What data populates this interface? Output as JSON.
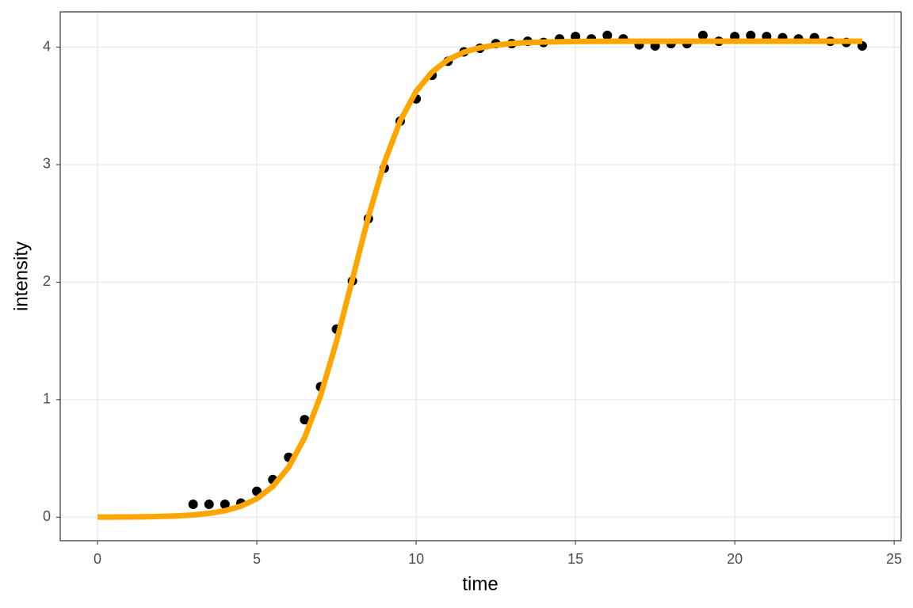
{
  "chart_data": {
    "type": "scatter",
    "x_label": "time",
    "y_label": "intensity",
    "xlim": [
      -1.17,
      25.22
    ],
    "ylim": [
      -0.2,
      4.3
    ],
    "xticks": [
      0,
      5,
      10,
      15,
      20,
      25
    ],
    "yticks": [
      0,
      1,
      2,
      3,
      4
    ],
    "grid": true,
    "series": [
      {
        "mark": "point",
        "color": "#000000",
        "x": [
          3,
          3.5,
          4,
          4.5,
          5,
          5.5,
          6,
          6.5,
          7,
          7.5,
          8,
          8.5,
          9,
          9.5,
          10,
          10.5,
          11,
          11.5,
          12,
          12.5,
          13,
          13.5,
          14,
          14.5,
          15,
          15.5,
          16,
          16.5,
          17,
          17.5,
          18,
          18.5,
          19,
          19.5,
          20,
          20.5,
          21,
          21.5,
          22,
          22.5,
          23,
          23.5,
          24
        ],
        "values": [
          0.11,
          0.11,
          0.11,
          0.12,
          0.22,
          0.32,
          0.51,
          0.83,
          1.11,
          1.6,
          2.01,
          2.54,
          2.97,
          3.37,
          3.56,
          3.76,
          3.88,
          3.96,
          3.99,
          4.03,
          4.03,
          4.05,
          4.04,
          4.07,
          4.09,
          4.07,
          4.1,
          4.07,
          4.02,
          4.01,
          4.03,
          4.03,
          4.1,
          4.05,
          4.09,
          4.1,
          4.09,
          4.08,
          4.07,
          4.08,
          4.05,
          4.04,
          4.01
        ]
      },
      {
        "mark": "line",
        "color": "#FFA500",
        "x": [
          0,
          0.5,
          1,
          1.5,
          2,
          2.5,
          3,
          3.5,
          4,
          4.5,
          5,
          5.5,
          6,
          6.5,
          7,
          7.5,
          8,
          8.5,
          9,
          9.5,
          10,
          10.5,
          11,
          11.5,
          12,
          12.5,
          13,
          13.5,
          14,
          14.5,
          15,
          15.5,
          16,
          16.5,
          17,
          17.5,
          18,
          18.5,
          19,
          19.5,
          20,
          20.5,
          21,
          21.5,
          22,
          22.5,
          23,
          23.5,
          24
        ],
        "values": [
          0.001,
          0.001,
          0.002,
          0.004,
          0.007,
          0.011,
          0.019,
          0.033,
          0.055,
          0.094,
          0.157,
          0.261,
          0.426,
          0.677,
          1.034,
          1.496,
          2.025,
          2.554,
          3.016,
          3.373,
          3.624,
          3.789,
          3.893,
          3.957,
          3.995,
          4.017,
          4.031,
          4.039,
          4.043,
          4.046,
          4.048,
          4.049,
          4.049,
          4.05,
          4.05,
          4.05,
          4.05,
          4.05,
          4.05,
          4.05,
          4.05,
          4.05,
          4.05,
          4.05,
          4.05,
          4.05,
          4.05,
          4.05,
          4.05
        ]
      }
    ]
  }
}
